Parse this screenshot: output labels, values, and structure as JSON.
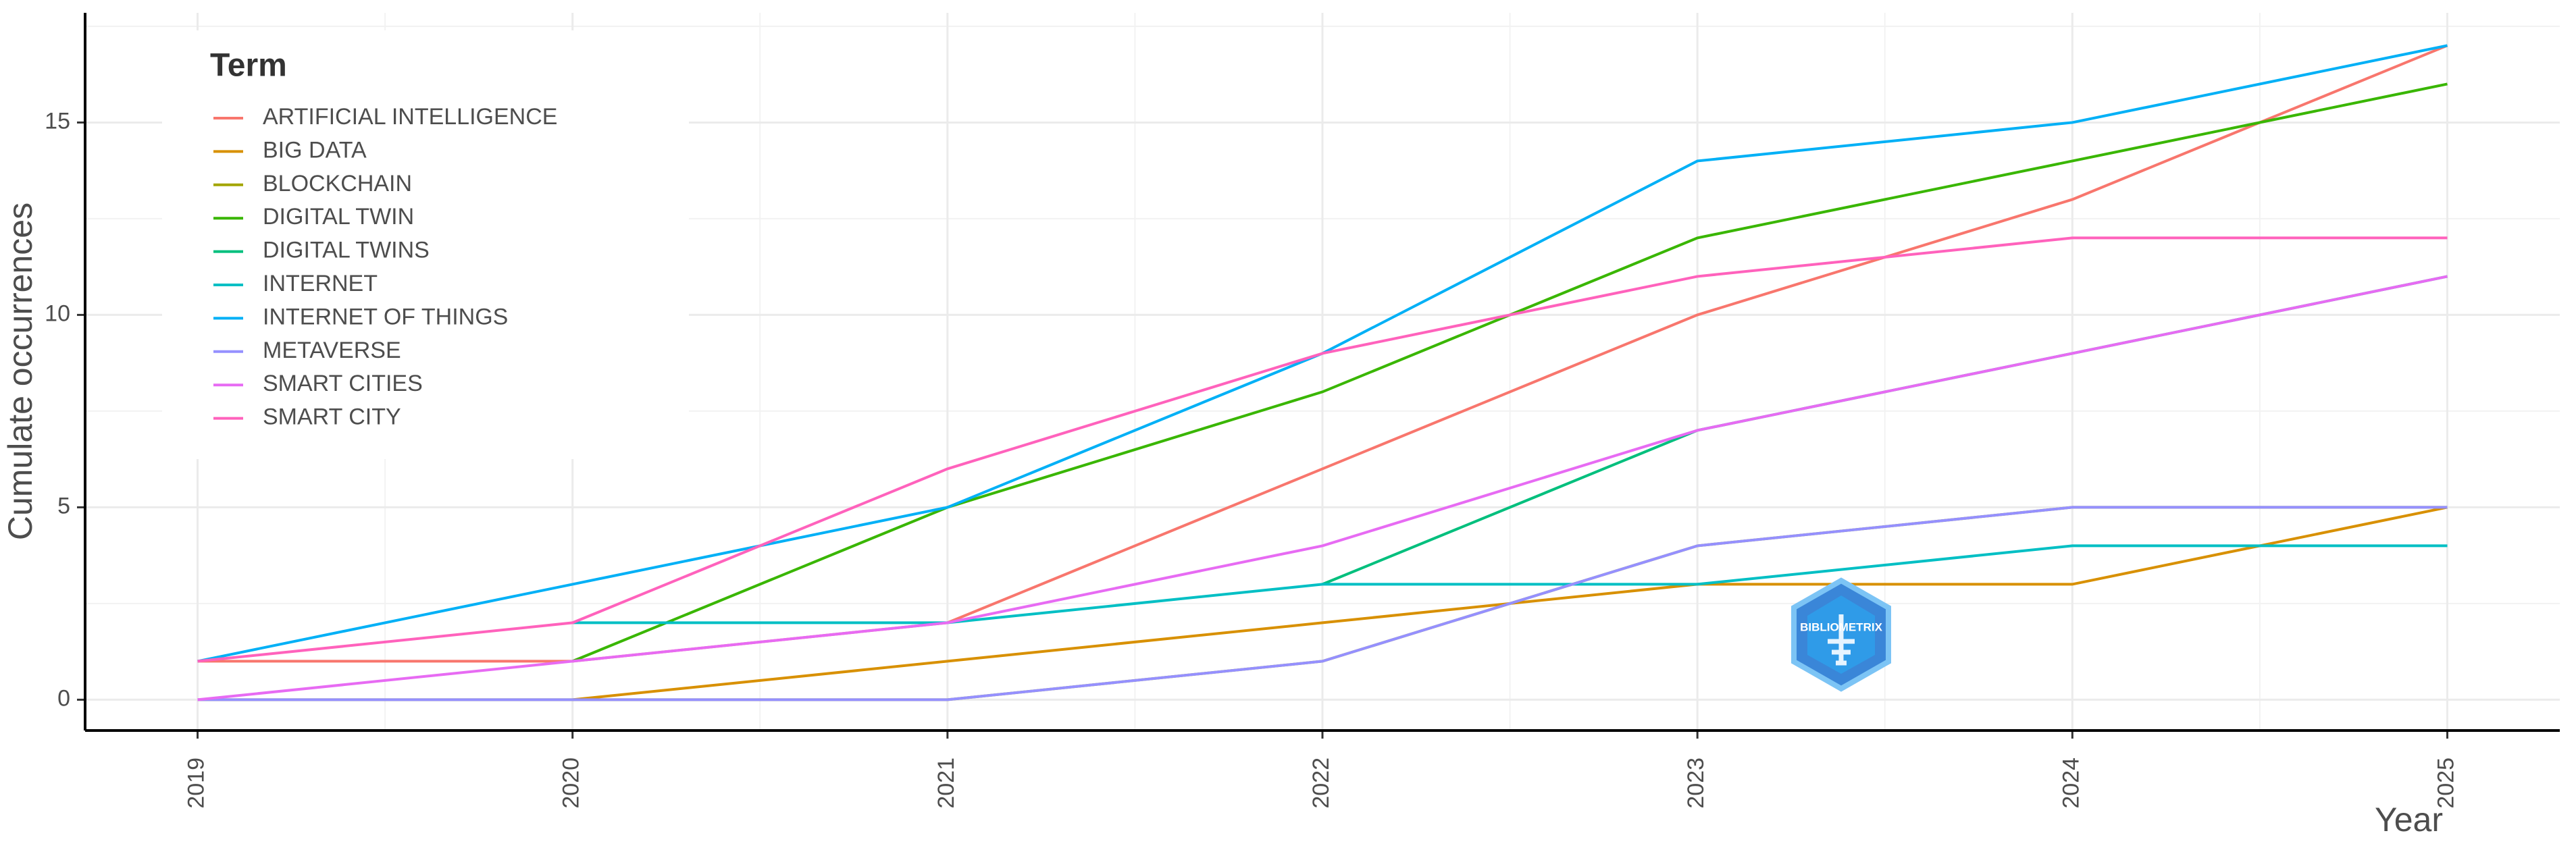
{
  "chart_data": {
    "type": "line",
    "x_label": "Year",
    "y_label": "Cumulate occurrences",
    "legend_title": "Term",
    "legend_position": "top-left",
    "grid": true,
    "watermark": "BIBLIOMETRIX",
    "x": [
      2019,
      2020,
      2021,
      2022,
      2023,
      2024,
      2025
    ],
    "xlim": [
      2018.7,
      2025.3
    ],
    "xticks": [
      2019,
      2020,
      2021,
      2022,
      2023,
      2024,
      2025
    ],
    "ylim": [
      -0.8,
      17.85
    ],
    "yticks": [
      0,
      5,
      10,
      15
    ],
    "series": [
      {
        "name": "ARTIFICIAL INTELLIGENCE",
        "color": "#F8766D",
        "values": [
          1,
          1,
          2,
          6,
          10,
          13,
          17
        ]
      },
      {
        "name": "BIG DATA",
        "color": "#D89000",
        "values": [
          null,
          0,
          1,
          2,
          3,
          3,
          5
        ]
      },
      {
        "name": "BLOCKCHAIN",
        "color": "#A3A500",
        "values": [
          0,
          0,
          0,
          1,
          4,
          5,
          5
        ]
      },
      {
        "name": "DIGITAL TWIN",
        "color": "#39B600",
        "values": [
          null,
          1,
          5,
          8,
          12,
          14,
          16
        ]
      },
      {
        "name": "DIGITAL TWINS",
        "color": "#00BF7D",
        "values": [
          null,
          null,
          null,
          3,
          7,
          9,
          11
        ]
      },
      {
        "name": "INTERNET",
        "color": "#00BFC4",
        "values": [
          null,
          2,
          2,
          3,
          3,
          4,
          4
        ]
      },
      {
        "name": "INTERNET OF THINGS",
        "color": "#00B0F6",
        "values": [
          1,
          3,
          5,
          9,
          14,
          15,
          17
        ]
      },
      {
        "name": "METAVERSE",
        "color": "#9590FF",
        "values": [
          0,
          0,
          0,
          1,
          4,
          5,
          5
        ]
      },
      {
        "name": "SMART CITIES",
        "color": "#E76BF3",
        "values": [
          0,
          1,
          2,
          4,
          7,
          9,
          11
        ]
      },
      {
        "name": "SMART CITY",
        "color": "#FF62BC",
        "values": [
          1,
          2,
          6,
          9,
          11,
          12,
          12
        ]
      }
    ]
  }
}
